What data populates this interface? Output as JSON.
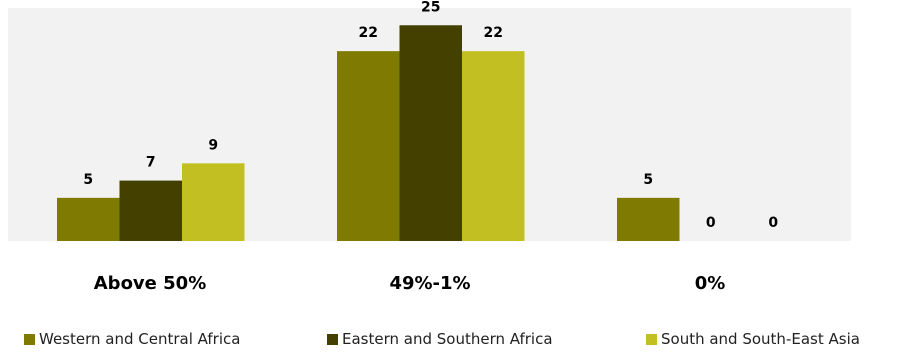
{
  "chart_data": {
    "type": "bar",
    "categories": [
      "Above 50%",
      "49%-1%",
      "0%"
    ],
    "series": [
      {
        "name": "Western and Central Africa",
        "values": [
          5,
          22,
          5
        ],
        "color": "#7f7a02"
      },
      {
        "name": "Eastern and Southern Africa",
        "values": [
          7,
          25,
          0
        ],
        "color": "#434000"
      },
      {
        "name": "South and South-East Asia",
        "values": [
          9,
          22,
          0
        ],
        "color": "#c2bf23"
      }
    ],
    "ylim": [
      0,
      27
    ],
    "grid": false,
    "legend_position": "bottom",
    "plot_background": "#f2f2f2",
    "data_labels": true
  }
}
